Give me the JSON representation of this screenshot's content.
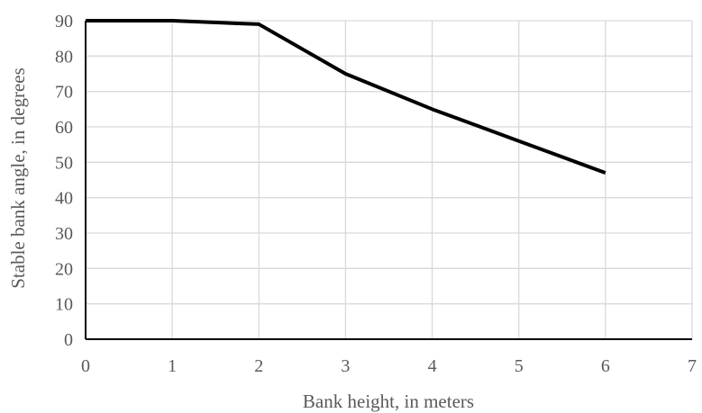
{
  "chart_data": {
    "type": "line",
    "xlabel": "Bank height, in meters",
    "ylabel": "Stable bank angle, in degrees",
    "xlim": [
      0,
      7
    ],
    "ylim": [
      0,
      90
    ],
    "x_ticks": [
      0,
      1,
      2,
      3,
      4,
      5,
      6,
      7
    ],
    "y_ticks": [
      0,
      10,
      20,
      30,
      40,
      50,
      60,
      70,
      80,
      90
    ],
    "grid": true,
    "series": [
      {
        "x": [
          0,
          1,
          2,
          3,
          4,
          5,
          6
        ],
        "y": [
          90,
          90,
          89,
          75,
          65,
          56,
          47
        ]
      }
    ],
    "colors": {
      "line": "#000000",
      "grid": "#d9d9d9",
      "axis": "#000000",
      "text": "#595959"
    }
  }
}
